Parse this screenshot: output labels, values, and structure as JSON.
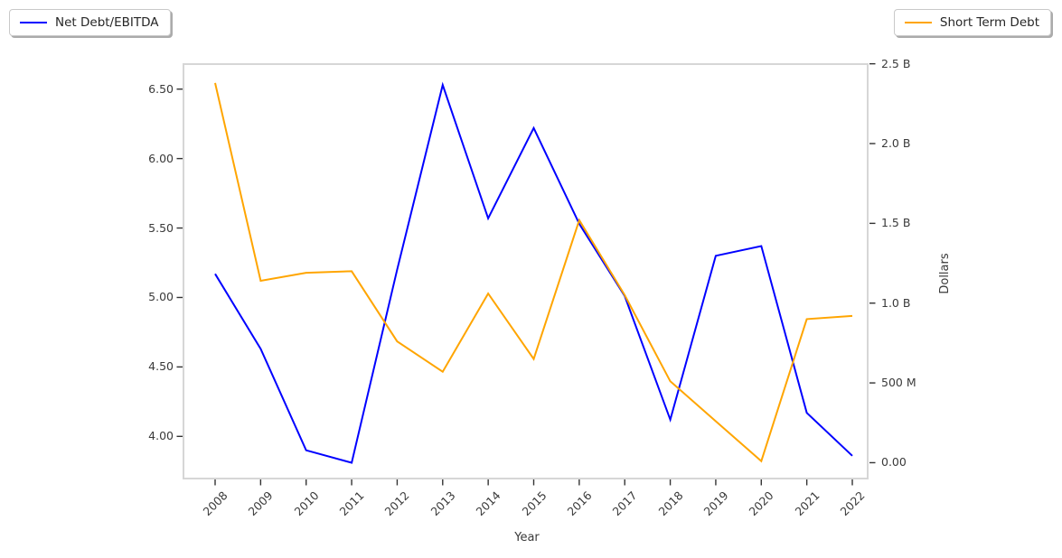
{
  "legend": {
    "left": {
      "label": "Net Debt/EBITDA"
    },
    "right": {
      "label": "Short Term Debt"
    }
  },
  "colors": {
    "net_debt_ebitda": "#0000ff",
    "short_term_debt": "#ffa500",
    "axis_border": "#d6d6d6",
    "tick_mark": "#333333",
    "tick_text": "#3a3a3a"
  },
  "chart_data": {
    "type": "line",
    "title": "",
    "xlabel": "Year",
    "ylabel_left": "",
    "ylabel_right": "Dollars",
    "grid": false,
    "legend_position": "outside top-left and top-right",
    "categories": [
      "2008",
      "2009",
      "2010",
      "2011",
      "2012",
      "2013",
      "2014",
      "2015",
      "2016",
      "2017",
      "2018",
      "2019",
      "2020",
      "2021",
      "2022"
    ],
    "series": [
      {
        "name": "Net Debt/EBITDA",
        "axis": "left",
        "color_key": "net_debt_ebitda",
        "values": [
          5.17,
          4.63,
          3.9,
          3.81,
          5.2,
          6.53,
          5.57,
          6.22,
          5.53,
          5.01,
          4.12,
          5.3,
          5.37,
          4.17,
          3.86
        ]
      },
      {
        "name": "Short Term Debt",
        "axis": "right",
        "unit": "billions of dollars",
        "color_key": "short_term_debt",
        "values": [
          2.38,
          1.14,
          1.19,
          1.2,
          0.76,
          0.57,
          1.06,
          0.65,
          1.52,
          1.05,
          0.51,
          0.26,
          0.01,
          0.9,
          0.92
        ]
      }
    ],
    "axes": {
      "left": {
        "range": [
          3.69,
          6.68
        ],
        "ticks": [
          {
            "label": "4.00",
            "value": 4.0
          },
          {
            "label": "4.50",
            "value": 4.5
          },
          {
            "label": "5.00",
            "value": 5.0
          },
          {
            "label": "5.50",
            "value": 5.5
          },
          {
            "label": "6.00",
            "value": 6.0
          },
          {
            "label": "6.50",
            "value": 6.5
          }
        ]
      },
      "right": {
        "range": [
          -0.105,
          2.498
        ],
        "ticks": [
          {
            "label": "0.00",
            "value": 0.0
          },
          {
            "label": "500 M",
            "value": 0.5
          },
          {
            "label": "1.0 B",
            "value": 1.0
          },
          {
            "label": "1.5 B",
            "value": 1.5
          },
          {
            "label": "2.0 B",
            "value": 2.0
          },
          {
            "label": "2.5 B",
            "value": 2.5
          }
        ]
      }
    }
  }
}
